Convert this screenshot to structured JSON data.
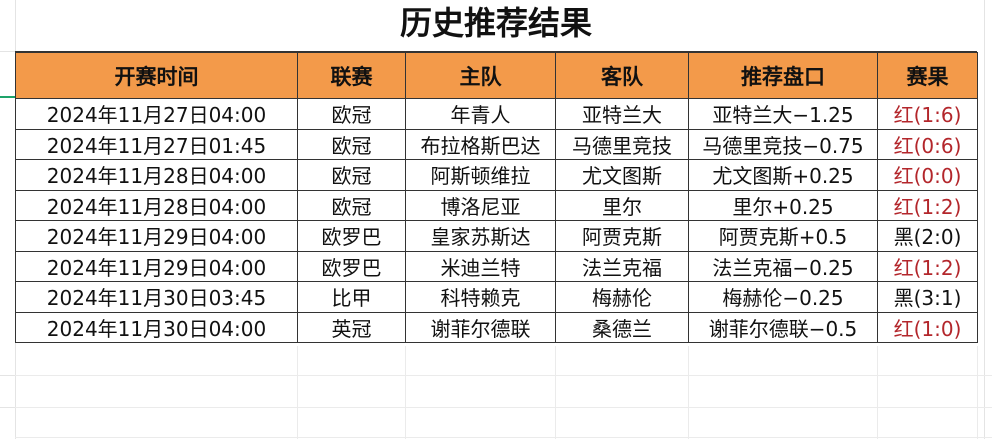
{
  "title": "历史推荐结果",
  "columns": [
    "开赛时间",
    "联赛",
    "主队",
    "客队",
    "推荐盘口",
    "赛果"
  ],
  "rows": [
    [
      "2024年11月27日04:00",
      "欧冠",
      "年青人",
      "亚特兰大",
      "亚特兰大−1.25",
      "红(1:6)"
    ],
    [
      "2024年11月27日01:45",
      "欧冠",
      "布拉格斯巴达",
      "马德里竞技",
      "马德里竞技−0.75",
      "红(0:6)"
    ],
    [
      "2024年11月28日04:00",
      "欧冠",
      "阿斯顿维拉",
      "尤文图斯",
      "尤文图斯+0.25",
      "红(0:0)"
    ],
    [
      "2024年11月28日04:00",
      "欧冠",
      "博洛尼亚",
      "里尔",
      "里尔+0.25",
      "红(1:2)"
    ],
    [
      "2024年11月29日04:00",
      "欧罗巴",
      "皇家苏斯达",
      "阿贾克斯",
      "阿贾克斯+0.5",
      "黑(2:0)"
    ],
    [
      "2024年11月29日04:00",
      "欧罗巴",
      "米迪兰特",
      "法兰克福",
      "法兰克福−0.25",
      "红(1:2)"
    ],
    [
      "2024年11月30日03:45",
      "比甲",
      "科特赖克",
      "梅赫伦",
      "梅赫伦−0.25",
      "黑(3:1)"
    ],
    [
      "2024年11月30日04:00",
      "英冠",
      "谢菲尔德联",
      "桑德兰",
      "谢菲尔德联−0.5",
      "红(1:0)"
    ]
  ],
  "colors": {
    "header_bg": "#f39a4a",
    "win_red": "#b3262b",
    "loss_black": "#111111"
  }
}
